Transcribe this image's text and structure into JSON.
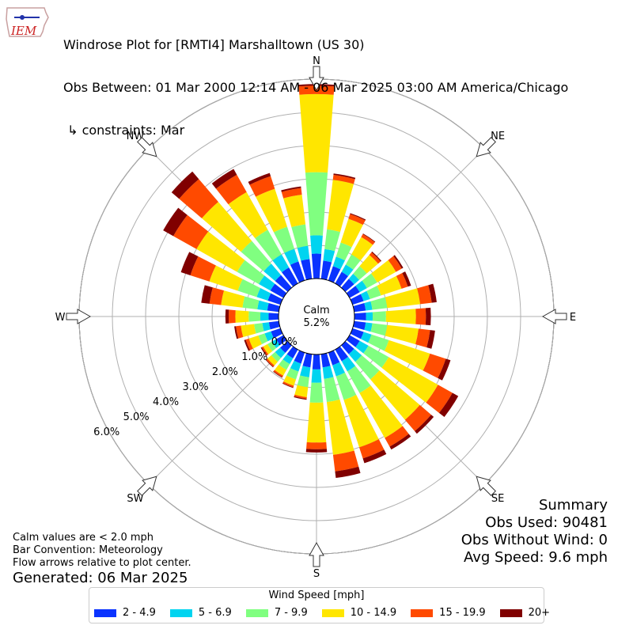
{
  "header": {
    "logo_text": "IEM",
    "title_lines": [
      "Windrose Plot for [RMTI4] Marshalltown (US 30)",
      "Obs Between: 01 Mar 2000 12:14 AM - 06 Mar 2025 03:00 AM America/Chicago",
      " ↳ constraints: Mar"
    ]
  },
  "footer": {
    "notes": [
      "Calm values are < 2.0 mph",
      "Bar Convention: Meteorology",
      "Flow arrows relative to plot center."
    ],
    "generated": "Generated: 06 Mar 2025"
  },
  "summary": {
    "title": "Summary",
    "obs_used": "Obs Used: 90481",
    "obs_without_wind": "Obs Without Wind: 0",
    "avg_speed": "Avg Speed: 9.6 mph"
  },
  "legend": {
    "title": "Wind Speed [mph]",
    "items": [
      {
        "label": "2 - 4.9",
        "color": "#0a33ff"
      },
      {
        "label": "5 - 6.9",
        "color": "#00d4f0"
      },
      {
        "label": "7 - 9.9",
        "color": "#80ff80"
      },
      {
        "label": "10 - 14.9",
        "color": "#ffe600"
      },
      {
        "label": "15 - 19.9",
        "color": "#ff4a00"
      },
      {
        "label": "20+",
        "color": "#800000"
      }
    ]
  },
  "chart_data": {
    "type": "windrose",
    "calm_label": "Calm",
    "calm_percent": "5.2%",
    "radial_ticks": [
      "0.0%",
      "1.0%",
      "2.0%",
      "3.0%",
      "4.0%",
      "5.0%",
      "6.0%"
    ],
    "rmax": 6.0,
    "directions": [
      "N",
      "NNE",
      "NE",
      "ENE",
      "E",
      "ESE",
      "SE",
      "SSE",
      "S",
      "SSW",
      "SW",
      "WSW",
      "W",
      "WNW",
      "NW",
      "NNW"
    ],
    "direction_labels": [
      "N",
      "NE",
      "E",
      "SE",
      "S",
      "SW",
      "W",
      "NW"
    ],
    "bins": [
      "2 - 4.9",
      "5 - 6.9",
      "7 - 9.9",
      "10 - 14.9",
      "15 - 19.9",
      "20+"
    ],
    "series": [
      {
        "dir": "N",
        "values": [
          0.75,
          0.55,
          1.9,
          2.35,
          0.25,
          0.05
        ]
      },
      {
        "dir": "N+",
        "values": [
          0.55,
          0.35,
          0.6,
          1.5,
          0.15,
          0.04
        ]
      },
      {
        "dir": "NNE",
        "values": [
          0.45,
          0.3,
          0.45,
          0.75,
          0.15,
          0.03
        ]
      },
      {
        "dir": "NNE+",
        "values": [
          0.4,
          0.25,
          0.35,
          0.6,
          0.1,
          0.02
        ]
      },
      {
        "dir": "NE",
        "values": [
          0.35,
          0.2,
          0.3,
          0.45,
          0.1,
          0.03
        ]
      },
      {
        "dir": "NE+",
        "values": [
          0.35,
          0.25,
          0.35,
          0.65,
          0.2,
          0.05
        ]
      },
      {
        "dir": "ENE",
        "values": [
          0.35,
          0.2,
          0.35,
          0.65,
          0.2,
          0.1
        ]
      },
      {
        "dir": "ENE+",
        "values": [
          0.35,
          0.2,
          0.45,
          1.0,
          0.35,
          0.15
        ]
      },
      {
        "dir": "E",
        "values": [
          0.35,
          0.2,
          0.4,
          0.9,
          0.3,
          0.15
        ]
      },
      {
        "dir": "E+",
        "values": [
          0.35,
          0.2,
          0.45,
          0.95,
          0.35,
          0.15
        ]
      },
      {
        "dir": "ESE",
        "values": [
          0.35,
          0.25,
          0.55,
          1.3,
          0.5,
          0.15
        ]
      },
      {
        "dir": "ESE+",
        "values": [
          0.35,
          0.3,
          0.7,
          1.7,
          0.5,
          0.2
        ]
      },
      {
        "dir": "SE",
        "values": [
          0.35,
          0.3,
          0.7,
          1.6,
          0.45,
          0.1
        ]
      },
      {
        "dir": "SE+",
        "values": [
          0.4,
          0.35,
          0.75,
          1.55,
          0.3,
          0.1
        ]
      },
      {
        "dir": "SSE",
        "values": [
          0.4,
          0.35,
          0.75,
          1.5,
          0.35,
          0.15
        ]
      },
      {
        "dir": "SSE+",
        "values": [
          0.4,
          0.35,
          0.7,
          1.6,
          0.5,
          0.2
        ]
      },
      {
        "dir": "S",
        "values": [
          0.45,
          0.4,
          0.6,
          1.2,
          0.2,
          0.1
        ]
      },
      {
        "dir": "S+",
        "values": [
          0.4,
          0.3,
          0.3,
          0.3,
          0.05,
          0.03
        ]
      },
      {
        "dir": "SSW",
        "values": [
          0.35,
          0.25,
          0.25,
          0.2,
          0.05,
          0.02
        ]
      },
      {
        "dir": "SSW+",
        "values": [
          0.3,
          0.2,
          0.2,
          0.2,
          0.05,
          0.02
        ]
      },
      {
        "dir": "SW",
        "values": [
          0.3,
          0.2,
          0.15,
          0.15,
          0.05,
          0.02
        ]
      },
      {
        "dir": "SW+",
        "values": [
          0.25,
          0.15,
          0.15,
          0.15,
          0.05,
          0.03
        ]
      },
      {
        "dir": "WSW",
        "values": [
          0.3,
          0.2,
          0.2,
          0.3,
          0.1,
          0.05
        ]
      },
      {
        "dir": "WSW+",
        "values": [
          0.3,
          0.2,
          0.25,
          0.4,
          0.15,
          0.05
        ]
      },
      {
        "dir": "W",
        "values": [
          0.3,
          0.25,
          0.35,
          0.4,
          0.2,
          0.1
        ]
      },
      {
        "dir": "W+",
        "values": [
          0.35,
          0.3,
          0.45,
          0.65,
          0.35,
          0.25
        ]
      },
      {
        "dir": "WNW",
        "values": [
          0.4,
          0.35,
          0.6,
          0.9,
          0.6,
          0.3
        ]
      },
      {
        "dir": "WNW+",
        "values": [
          0.45,
          0.4,
          0.75,
          1.4,
          0.8,
          0.35
        ]
      },
      {
        "dir": "NW",
        "values": [
          0.5,
          0.45,
          0.9,
          1.55,
          0.9,
          0.3
        ]
      },
      {
        "dir": "NW+",
        "values": [
          0.55,
          0.45,
          0.85,
          1.3,
          0.6,
          0.2
        ]
      },
      {
        "dir": "NNW",
        "values": [
          0.6,
          0.4,
          0.7,
          1.2,
          0.4,
          0.1
        ]
      },
      {
        "dir": "NNW+",
        "values": [
          0.6,
          0.4,
          0.65,
          0.9,
          0.2,
          0.05
        ]
      }
    ]
  }
}
